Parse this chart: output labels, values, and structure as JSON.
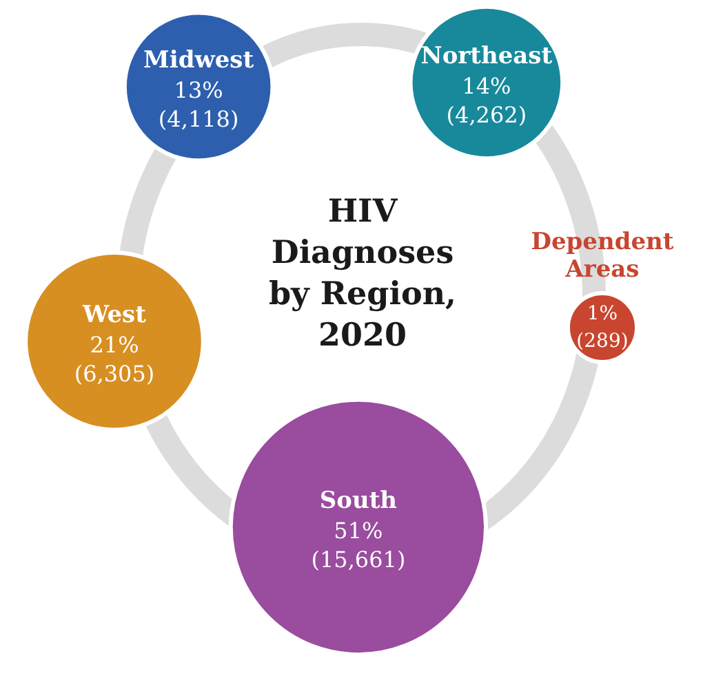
{
  "chart_data": {
    "type": "other",
    "title": "HIV Diagnoses by Region, 2020",
    "categories": [
      "Midwest",
      "Northeast",
      "Dependent Areas",
      "South",
      "West"
    ],
    "series": [
      {
        "values": [
          13,
          14,
          1,
          51,
          21
        ],
        "value_labels": [
          "13%",
          "14%",
          "1%",
          "51%",
          "21%"
        ],
        "colors": [
          "#2d5fae",
          "#17899b",
          "#c8452f",
          "#9a4c9e",
          "#d78f22"
        ]
      },
      {
        "values": [
          4118,
          4262,
          289,
          15661,
          6305
        ],
        "value_labels": [
          "(4,118)",
          "(4,262)",
          "(289)",
          "(15,661)",
          "(6,305)"
        ]
      }
    ]
  }
}
